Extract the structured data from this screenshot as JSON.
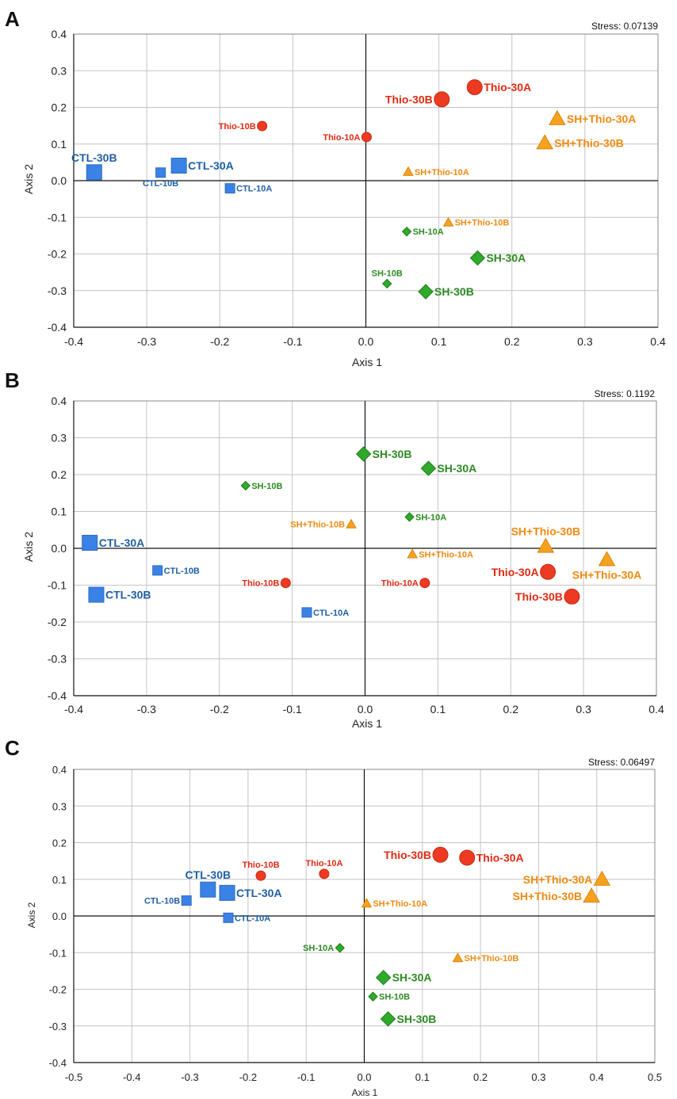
{
  "colors": {
    "CTL": "#3a82e6",
    "CTL_label": "#1f5fa3",
    "Thio": "#ee3a22",
    "Thio_label": "#e02a14",
    "SH": "#2faa2a",
    "SH_label": "#2c8a22",
    "SHThio": "#f7a21f",
    "SHThio_label": "#ef8a10",
    "grid": "#c4c4c4",
    "axis": "#111111"
  },
  "chart_data": [
    {
      "panel": "A",
      "type": "scatter",
      "stress_label": "Stress: 0.07139",
      "xlabel": "Axis 1",
      "ylabel": "Axis 2",
      "xlim": [
        -0.4,
        0.4
      ],
      "ylim": [
        -0.4,
        0.4
      ],
      "xticks": [
        "-0.4",
        "-0.3",
        "-0.2",
        "-0.1",
        "0.0",
        "0.1",
        "0.2",
        "0.3",
        "0.4"
      ],
      "yticks": [
        "0.4",
        "0.3",
        "0.2",
        "0.1",
        "0.0",
        "-0.1",
        "-0.2",
        "-0.3",
        "-0.4"
      ],
      "points": [
        {
          "label": "CTL-30B",
          "group": "CTL",
          "size": "large",
          "x": -0.372,
          "y": 0.023,
          "pos": "above"
        },
        {
          "label": "CTL-10B",
          "group": "CTL",
          "size": "small",
          "x": -0.281,
          "y": 0.022,
          "pos": "below"
        },
        {
          "label": "CTL-30A",
          "group": "CTL",
          "size": "large",
          "x": -0.256,
          "y": 0.041,
          "pos": "right"
        },
        {
          "label": "CTL-10A",
          "group": "CTL",
          "size": "small",
          "x": -0.186,
          "y": -0.021,
          "pos": "right"
        },
        {
          "label": "Thio-10B",
          "group": "Thio",
          "size": "small",
          "x": -0.142,
          "y": 0.149,
          "pos": "left"
        },
        {
          "label": "Thio-10A",
          "group": "Thio",
          "size": "small",
          "x": 0.001,
          "y": 0.119,
          "pos": "left"
        },
        {
          "label": "Thio-30B",
          "group": "Thio",
          "size": "large",
          "x": 0.104,
          "y": 0.222,
          "pos": "left"
        },
        {
          "label": "Thio-30A",
          "group": "Thio",
          "size": "large",
          "x": 0.149,
          "y": 0.255,
          "pos": "right"
        },
        {
          "label": "SH+Thio-30A",
          "group": "SHThio",
          "size": "large",
          "x": 0.262,
          "y": 0.169,
          "pos": "right"
        },
        {
          "label": "SH+Thio-30B",
          "group": "SHThio",
          "size": "large",
          "x": 0.245,
          "y": 0.103,
          "pos": "right"
        },
        {
          "label": "SH+Thio-10A",
          "group": "SHThio",
          "size": "small",
          "x": 0.058,
          "y": 0.024,
          "pos": "right"
        },
        {
          "label": "SH+Thio-10B",
          "group": "SHThio",
          "size": "small",
          "x": 0.113,
          "y": -0.114,
          "pos": "right"
        },
        {
          "label": "SH-10A",
          "group": "SH",
          "size": "small",
          "x": 0.056,
          "y": -0.139,
          "pos": "right"
        },
        {
          "label": "SH-30A",
          "group": "SH",
          "size": "large",
          "x": 0.153,
          "y": -0.211,
          "pos": "right"
        },
        {
          "label": "SH-10B",
          "group": "SH",
          "size": "small",
          "x": 0.029,
          "y": -0.281,
          "pos": "above"
        },
        {
          "label": "SH-30B",
          "group": "SH",
          "size": "large",
          "x": 0.082,
          "y": -0.303,
          "pos": "right"
        }
      ]
    },
    {
      "panel": "B",
      "type": "scatter",
      "stress_label": "Stress: 0.1192",
      "xlabel": "Axis 1",
      "ylabel": "Axis 2",
      "xlim": [
        -0.4,
        0.4
      ],
      "ylim": [
        -0.4,
        0.4
      ],
      "xticks": [
        "-0.4",
        "-0.3",
        "-0.2",
        "-0.1",
        "0.0",
        "0.1",
        "0.2",
        "0.3",
        "0.4"
      ],
      "yticks": [
        "0.4",
        "0.3",
        "0.2",
        "0.1",
        "0.0",
        "-0.1",
        "-0.2",
        "-0.3",
        "-0.4"
      ],
      "points": [
        {
          "label": "SH-30B",
          "group": "SH",
          "size": "large",
          "x": -0.002,
          "y": 0.256,
          "pos": "right"
        },
        {
          "label": "SH-30A",
          "group": "SH",
          "size": "large",
          "x": 0.087,
          "y": 0.217,
          "pos": "right"
        },
        {
          "label": "SH-10B",
          "group": "SH",
          "size": "small",
          "x": -0.164,
          "y": 0.17,
          "pos": "right"
        },
        {
          "label": "SH-10A",
          "group": "SH",
          "size": "small",
          "x": 0.061,
          "y": 0.085,
          "pos": "right"
        },
        {
          "label": "SH+Thio-10B",
          "group": "SHThio",
          "size": "small",
          "x": -0.019,
          "y": 0.065,
          "pos": "left"
        },
        {
          "label": "SH+Thio-10A",
          "group": "SHThio",
          "size": "small",
          "x": 0.065,
          "y": -0.016,
          "pos": "right"
        },
        {
          "label": "SH+Thio-30B",
          "group": "SHThio",
          "size": "large",
          "x": 0.248,
          "y": 0.005,
          "pos": "above"
        },
        {
          "label": "SH+Thio-30A",
          "group": "SHThio",
          "size": "large",
          "x": 0.332,
          "y": -0.031,
          "pos": "below"
        },
        {
          "label": "CTL-30A",
          "group": "CTL",
          "size": "large",
          "x": -0.378,
          "y": 0.015,
          "pos": "right"
        },
        {
          "label": "CTL-10B",
          "group": "CTL",
          "size": "small",
          "x": -0.285,
          "y": -0.06,
          "pos": "right"
        },
        {
          "label": "CTL-30B",
          "group": "CTL",
          "size": "large",
          "x": -0.369,
          "y": -0.126,
          "pos": "right"
        },
        {
          "label": "CTL-10A",
          "group": "CTL",
          "size": "small",
          "x": -0.08,
          "y": -0.174,
          "pos": "right"
        },
        {
          "label": "Thio-10B",
          "group": "Thio",
          "size": "small",
          "x": -0.109,
          "y": -0.094,
          "pos": "left"
        },
        {
          "label": "Thio-10A",
          "group": "Thio",
          "size": "small",
          "x": 0.082,
          "y": -0.094,
          "pos": "left"
        },
        {
          "label": "Thio-30A",
          "group": "Thio",
          "size": "large",
          "x": 0.251,
          "y": -0.064,
          "pos": "left"
        },
        {
          "label": "Thio-30B",
          "group": "Thio",
          "size": "large",
          "x": 0.284,
          "y": -0.131,
          "pos": "left"
        }
      ]
    },
    {
      "panel": "C",
      "type": "scatter",
      "stress_label": "Stress: 0.06497",
      "xlabel": "Axis 1",
      "ylabel": "Axis 2",
      "xlim": [
        -0.5,
        0.5
      ],
      "ylim": [
        -0.4,
        0.4
      ],
      "xticks": [
        "-0.5",
        "-0.4",
        "-0.3",
        "-0.2",
        "-0.1",
        "0.0",
        "0.1",
        "0.2",
        "0.3",
        "0.4",
        "0.5"
      ],
      "yticks": [
        "0.4",
        "0.3",
        "0.2",
        "0.1",
        "0.0",
        "-0.1",
        "-0.2",
        "-0.3",
        "-0.4"
      ],
      "points": [
        {
          "label": "CTL-30B",
          "group": "CTL",
          "size": "large",
          "x": -0.269,
          "y": 0.072,
          "pos": "above"
        },
        {
          "label": "CTL-10B",
          "group": "CTL",
          "size": "small",
          "x": -0.306,
          "y": 0.042,
          "pos": "left"
        },
        {
          "label": "CTL-30A",
          "group": "CTL",
          "size": "large",
          "x": -0.236,
          "y": 0.063,
          "pos": "right"
        },
        {
          "label": "CTL-10A",
          "group": "CTL",
          "size": "small",
          "x": -0.234,
          "y": -0.005,
          "pos": "right"
        },
        {
          "label": "Thio-10B",
          "group": "Thio",
          "size": "small",
          "x": -0.178,
          "y": 0.11,
          "pos": "above"
        },
        {
          "label": "Thio-10A",
          "group": "Thio",
          "size": "small",
          "x": -0.069,
          "y": 0.115,
          "pos": "above"
        },
        {
          "label": "Thio-30B",
          "group": "Thio",
          "size": "large",
          "x": 0.131,
          "y": 0.167,
          "pos": "left"
        },
        {
          "label": "Thio-30A",
          "group": "Thio",
          "size": "large",
          "x": 0.177,
          "y": 0.159,
          "pos": "right"
        },
        {
          "label": "SH+Thio-30A",
          "group": "SHThio",
          "size": "large",
          "x": 0.409,
          "y": 0.1,
          "pos": "left"
        },
        {
          "label": "SH+Thio-30B",
          "group": "SHThio",
          "size": "large",
          "x": 0.391,
          "y": 0.054,
          "pos": "left"
        },
        {
          "label": "SH+Thio-10A",
          "group": "SHThio",
          "size": "small",
          "x": 0.004,
          "y": 0.034,
          "pos": "right"
        },
        {
          "label": "SH+Thio-10B",
          "group": "SHThio",
          "size": "small",
          "x": 0.161,
          "y": -0.115,
          "pos": "right"
        },
        {
          "label": "SH-10A",
          "group": "SH",
          "size": "small",
          "x": -0.042,
          "y": -0.087,
          "pos": "left"
        },
        {
          "label": "SH-30A",
          "group": "SH",
          "size": "large",
          "x": 0.033,
          "y": -0.168,
          "pos": "right"
        },
        {
          "label": "SH-10B",
          "group": "SH",
          "size": "small",
          "x": 0.015,
          "y": -0.22,
          "pos": "right"
        },
        {
          "label": "SH-30B",
          "group": "SH",
          "size": "large",
          "x": 0.041,
          "y": -0.281,
          "pos": "right"
        }
      ]
    }
  ]
}
